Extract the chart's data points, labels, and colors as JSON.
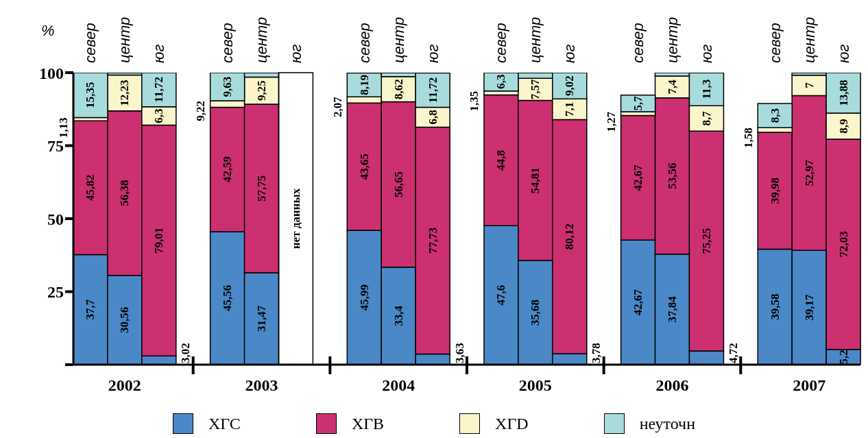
{
  "chart_data": {
    "type": "bar",
    "stacked": true,
    "ylabel": "%",
    "categories": [
      "север",
      "центр",
      "юг",
      "север",
      "центр",
      "юг",
      "север",
      "центр",
      "юг",
      "север",
      "центр",
      "юг",
      "север",
      "центр",
      "юг",
      "север",
      "центр",
      "юг"
    ],
    "series": [
      {
        "name": "ХГС",
        "color": "#4a88c8",
        "values": [
          37.7,
          30.56,
          3.02,
          45.56,
          31.47,
          null,
          45.99,
          33.4,
          3.63,
          47.6,
          35.68,
          3.78,
          42.67,
          37.84,
          4.72,
          39.58,
          39.17,
          5.2
        ],
        "value_labels": [
          "37,7",
          "30,56",
          "3,02",
          "45,56",
          "31,47",
          null,
          "45,99",
          "33,4",
          "3,63",
          "47,6",
          "35,68",
          "3,78",
          "42,67",
          "37,84",
          "4,72",
          "39,58",
          "39,17",
          "5,2"
        ]
      },
      {
        "name": "ХГВ",
        "color": "#cc3070",
        "values": [
          45.82,
          56.38,
          79.01,
          42.59,
          57.75,
          null,
          43.65,
          56.65,
          77.73,
          44.8,
          54.81,
          80.12,
          42.67,
          53.56,
          75.25,
          39.98,
          52.97,
          72.03
        ],
        "value_labels": [
          "45,82",
          "56,38",
          "79,01",
          "42,59",
          "57,75",
          null,
          "43,65",
          "56,65",
          "77,73",
          "44,8",
          "54,81",
          "80,12",
          "42,67",
          "53,56",
          "75,25",
          "39,98",
          "52,97",
          "72,03"
        ]
      },
      {
        "name": "ХГD",
        "color": "#fbf5cc",
        "values": [
          1.13,
          12.23,
          6.3,
          2.2,
          9.25,
          null,
          2.07,
          8.62,
          6.8,
          1.35,
          7.57,
          7.1,
          1.27,
          7.4,
          8.7,
          1.58,
          7,
          8.9
        ],
        "value_labels": [
          "1,13",
          "12,23",
          "6,3",
          null,
          "9,25",
          null,
          "2,07",
          "8,62",
          "6,8",
          "1,35",
          "7,57",
          "7,1",
          "1,27",
          "7,4",
          "8,7",
          "1,58",
          "7",
          "8,9"
        ]
      },
      {
        "name": "неуточн",
        "color": "#a8dcdc",
        "values": [
          15.35,
          0.8,
          11.72,
          9.63,
          1.5,
          null,
          8.19,
          1.3,
          11.72,
          6.3,
          1.9,
          9.02,
          5.7,
          1.2,
          11.3,
          8.3,
          0.8,
          13.88
        ],
        "value_labels": [
          "15,35",
          null,
          "11,72",
          "9,63",
          null,
          null,
          "8,19",
          null,
          "11,72",
          "6,3",
          null,
          "9,02",
          "5,7",
          null,
          "11,3",
          "8,3",
          null,
          "13,88"
        ]
      }
    ],
    "ylim": [
      0,
      100
    ],
    "yticks": [
      {
        "value": 0,
        "label": null
      },
      25,
      50,
      75,
      100
    ],
    "legend": "bottom",
    "annotations": [
      "2002",
      "2003",
      "2004",
      "2005",
      "2006",
      "2007",
      "нет данных",
      "9,22"
    ]
  }
}
